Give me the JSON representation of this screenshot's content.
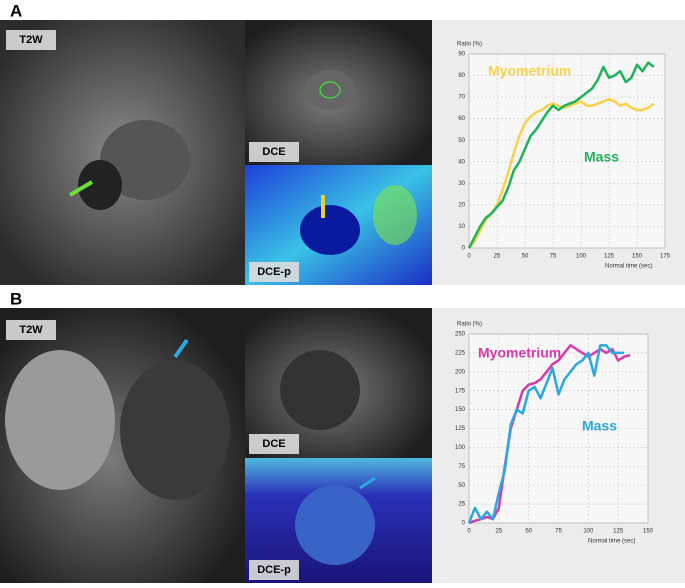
{
  "panels": [
    {
      "label": "A",
      "image_labels": [
        "T2W",
        "DCE",
        "DCE-p"
      ]
    },
    {
      "label": "B",
      "image_labels": [
        "T2W",
        "DCE",
        "DCE-p"
      ]
    }
  ],
  "chart_data": [
    {
      "type": "line",
      "y_label": "Ratio (%)",
      "x_label": "Normal time (sec)",
      "xlim": [
        0,
        175
      ],
      "xticks": [
        0,
        25,
        50,
        75,
        100,
        125,
        150,
        175
      ],
      "ylim": [
        0,
        90
      ],
      "yticks": [
        0,
        10,
        20,
        30,
        40,
        50,
        60,
        70,
        80,
        90
      ],
      "grid": true,
      "x": [
        0,
        5,
        10,
        15,
        20,
        25,
        30,
        35,
        40,
        45,
        50,
        55,
        60,
        65,
        70,
        75,
        80,
        85,
        90,
        95,
        100,
        105,
        110,
        115,
        120,
        125,
        130,
        135,
        140,
        145,
        150,
        155,
        160,
        165
      ],
      "series": [
        {
          "name": "Myometrium",
          "color": "#f7d24a",
          "values": [
            0,
            3,
            8,
            13,
            16,
            20,
            27,
            35,
            44,
            52,
            58,
            61,
            63,
            64,
            66,
            67,
            66,
            65,
            66,
            67,
            68,
            66,
            66,
            67,
            68,
            69,
            68,
            66,
            67,
            65,
            64,
            64,
            65,
            67
          ]
        },
        {
          "name": "Mass",
          "color": "#1fb25a",
          "values": [
            0,
            5,
            10,
            14,
            16,
            19,
            22,
            28,
            36,
            40,
            46,
            52,
            55,
            59,
            63,
            66,
            64,
            66,
            67,
            68,
            70,
            72,
            74,
            78,
            84,
            79,
            80,
            82,
            77,
            79,
            85,
            82,
            86,
            84
          ]
        }
      ]
    },
    {
      "type": "line",
      "y_label": "Ratio (%)",
      "x_label": "Normal time (sec)",
      "xlim": [
        0,
        150
      ],
      "xticks": [
        0,
        25,
        50,
        75,
        100,
        125,
        150
      ],
      "ylim": [
        0,
        250
      ],
      "yticks": [
        0,
        25,
        50,
        75,
        100,
        125,
        150,
        175,
        200,
        225,
        250
      ],
      "grid": true,
      "x": [
        0,
        5,
        10,
        15,
        20,
        25,
        30,
        35,
        40,
        45,
        50,
        55,
        60,
        65,
        70,
        75,
        80,
        85,
        90,
        95,
        100,
        105,
        110,
        115,
        120,
        125,
        130,
        135
      ],
      "series": [
        {
          "name": "Myometrium",
          "color": "#d63aa8",
          "values": [
            0,
            3,
            5,
            8,
            5,
            20,
            75,
            125,
            150,
            175,
            183,
            185,
            190,
            200,
            210,
            215,
            225,
            235,
            230,
            225,
            220,
            225,
            230,
            225,
            230,
            215,
            220,
            222
          ]
        },
        {
          "name": "Mass",
          "color": "#2aa8df",
          "values": [
            0,
            20,
            5,
            15,
            5,
            40,
            70,
            130,
            150,
            145,
            175,
            180,
            165,
            185,
            205,
            170,
            190,
            200,
            210,
            215,
            225,
            195,
            235,
            235,
            225,
            225,
            225,
            null
          ]
        }
      ]
    }
  ]
}
